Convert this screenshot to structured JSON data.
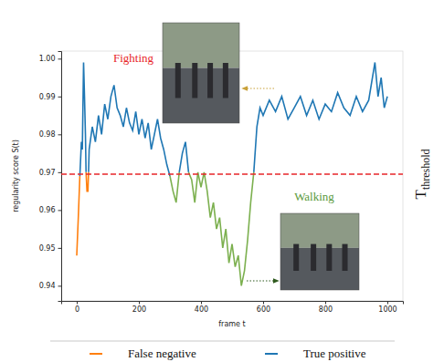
{
  "chart_data": {
    "type": "line",
    "x_label": "frame t",
    "y_label": "regularity score S(t)",
    "xlim": [
      -50,
      1050
    ],
    "ylim": [
      0.936,
      1.002
    ],
    "xticks": [
      0,
      200,
      400,
      600,
      800,
      1000
    ],
    "yticks": [
      0.94,
      0.95,
      0.96,
      0.97,
      0.98,
      0.99,
      {
        "value": 1.0,
        "label": "1.00"
      }
    ],
    "grid": false,
    "legend": "bottom",
    "x": [
      0,
      5,
      10,
      15,
      18,
      22,
      25,
      28,
      30,
      33,
      36,
      38,
      40,
      50,
      60,
      70,
      80,
      90,
      100,
      110,
      120,
      130,
      140,
      150,
      160,
      170,
      180,
      190,
      200,
      210,
      220,
      230,
      240,
      250,
      260,
      270,
      280,
      290,
      300,
      310,
      320,
      330,
      340,
      350,
      360,
      370,
      380,
      390,
      400,
      410,
      420,
      430,
      440,
      450,
      460,
      470,
      480,
      490,
      500,
      510,
      520,
      530,
      540,
      550,
      560,
      570,
      580,
      590,
      600,
      620,
      640,
      660,
      680,
      700,
      720,
      740,
      760,
      780,
      800,
      820,
      840,
      860,
      880,
      900,
      920,
      940,
      960,
      970,
      980,
      990,
      1000
    ],
    "series": [
      {
        "name": "False negative",
        "color": "#ff7f0e",
        "values": [
          0.948,
          0.958,
          0.969,
          null,
          null,
          null,
          null,
          null,
          0.97,
          0.965,
          0.965,
          0.97,
          null,
          null,
          null,
          null,
          null,
          null,
          null,
          null,
          null,
          null,
          null,
          null,
          null,
          null,
          null,
          null,
          null,
          null,
          null,
          null,
          null,
          null,
          null,
          null,
          null,
          null,
          null,
          null,
          null,
          null,
          null,
          null,
          null,
          null,
          null,
          null,
          null,
          null,
          null,
          null,
          null,
          null,
          null,
          null,
          null,
          null,
          null,
          null,
          null,
          null,
          null,
          null,
          null,
          null,
          null,
          null,
          null,
          null,
          null,
          null,
          null,
          null,
          null,
          null,
          null,
          null,
          null,
          null,
          null,
          null,
          null,
          null,
          null,
          null,
          null,
          null,
          null,
          null,
          null
        ]
      },
      {
        "name": "True positive",
        "color": "#1f77b4",
        "values": [
          null,
          null,
          0.969,
          0.978,
          0.976,
          0.999,
          0.99,
          0.98,
          0.97,
          null,
          null,
          0.97,
          0.976,
          0.982,
          0.978,
          0.985,
          0.98,
          0.988,
          0.984,
          0.99,
          0.993,
          0.987,
          0.985,
          0.982,
          0.987,
          0.983,
          0.981,
          0.986,
          0.98,
          0.984,
          0.979,
          0.983,
          0.976,
          0.98,
          0.984,
          0.979,
          0.976,
          0.972,
          0.969,
          null,
          null,
          0.97,
          0.975,
          0.978,
          0.97,
          null,
          null,
          null,
          null,
          null,
          null,
          null,
          null,
          null,
          null,
          null,
          null,
          null,
          null,
          null,
          null,
          null,
          null,
          null,
          null,
          0.97,
          0.982,
          0.987,
          0.985,
          0.989,
          0.986,
          0.99,
          0.984,
          0.987,
          0.99,
          0.985,
          0.989,
          0.984,
          0.988,
          0.986,
          0.991,
          0.987,
          0.985,
          0.99,
          0.986,
          0.989,
          0.999,
          0.99,
          0.995,
          0.987,
          0.99
        ]
      },
      {
        "color": "#7cb04f",
        "values": [
          null,
          null,
          null,
          null,
          null,
          null,
          null,
          null,
          null,
          null,
          null,
          null,
          null,
          null,
          null,
          null,
          null,
          null,
          null,
          null,
          null,
          null,
          null,
          null,
          null,
          null,
          null,
          null,
          null,
          null,
          null,
          null,
          null,
          null,
          null,
          null,
          null,
          null,
          0.969,
          0.965,
          0.962,
          0.97,
          null,
          null,
          0.97,
          0.968,
          0.962,
          0.97,
          0.966,
          0.97,
          0.965,
          0.958,
          0.962,
          0.955,
          0.958,
          0.95,
          0.955,
          0.946,
          0.951,
          0.945,
          0.948,
          0.94,
          0.944,
          0.952,
          0.962,
          0.97,
          null,
          null,
          null,
          null,
          null,
          null,
          null,
          null,
          null,
          null,
          null,
          null,
          null,
          null,
          null,
          null,
          null,
          null,
          null,
          null,
          null,
          null,
          null,
          null,
          null
        ]
      }
    ],
    "threshold": {
      "value": 0.9695,
      "label": "T",
      "label_sub": "threshold",
      "color": "#e8262a",
      "line_style": "dashed"
    },
    "annotations": [
      {
        "text": "Fighting",
        "color": "#e8262a"
      },
      {
        "text": "Walking",
        "color": "#5a9a3c"
      }
    ]
  }
}
